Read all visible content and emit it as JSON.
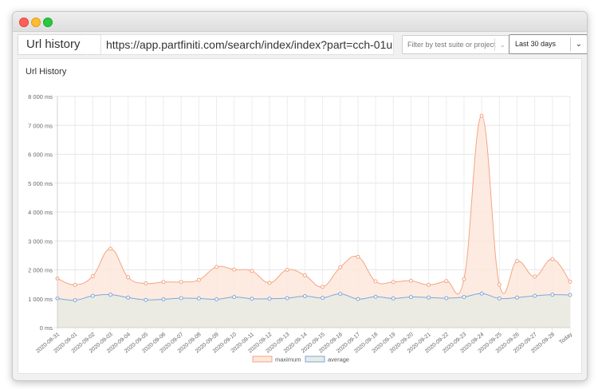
{
  "toolbar": {
    "page_title": "Url history",
    "url": "https://app.partfiniti.com/search/index/index?part=cch-01u",
    "filter_placeholder": "Filter by test suite or project",
    "range_value": "Last 30 days"
  },
  "panel": {
    "title": "Url History"
  },
  "colors": {
    "maximum_line": "#f4a582",
    "maximum_fill": "#fde8dd",
    "average_line": "#7fa7d8",
    "average_fill": "#e7ebe3"
  },
  "icons": {
    "dropdown": "chevron-down-icon"
  },
  "chart_data": {
    "type": "area",
    "title": "",
    "xlabel": "",
    "ylabel": "",
    "ylim": [
      0,
      8000
    ],
    "y_ticks": [
      0,
      1000,
      2000,
      3000,
      4000,
      5000,
      6000,
      7000,
      8000
    ],
    "y_tick_labels": [
      "0 ms",
      "1 000 ms",
      "2 000 ms",
      "3 000 ms",
      "4 000 ms",
      "5 000 ms",
      "6 000 ms",
      "7 000 ms",
      "8 000 ms"
    ],
    "grid": true,
    "legend": "bottom",
    "categories": [
      "2020-08-31",
      "2020-09-01",
      "2020-09-02",
      "2020-09-03",
      "2020-09-04",
      "2020-09-05",
      "2020-09-06",
      "2020-09-07",
      "2020-09-08",
      "2020-09-09",
      "2020-09-10",
      "2020-09-11",
      "2020-09-12",
      "2020-09-13",
      "2020-09-14",
      "2020-09-15",
      "2020-09-16",
      "2020-09-17",
      "2020-09-18",
      "2020-09-19",
      "2020-09-20",
      "2020-09-21",
      "2020-09-22",
      "2020-09-23",
      "2020-09-24",
      "2020-09-25",
      "2020-09-26",
      "2020-09-27",
      "2020-09-28",
      "Today"
    ],
    "series": [
      {
        "name": "maximum",
        "values": [
          1700,
          1480,
          1780,
          2730,
          1740,
          1530,
          1580,
          1580,
          1650,
          2100,
          2010,
          1960,
          1550,
          2000,
          1810,
          1410,
          2090,
          2450,
          1600,
          1580,
          1620,
          1480,
          1610,
          1680,
          7330,
          1490,
          2300,
          1770,
          2370,
          1590
        ]
      },
      {
        "name": "average",
        "values": [
          1010,
          950,
          1100,
          1140,
          1040,
          960,
          980,
          1020,
          1010,
          980,
          1060,
          1000,
          1000,
          1020,
          1090,
          1030,
          1170,
          990,
          1070,
          1010,
          1060,
          1040,
          1020,
          1060,
          1180,
          1010,
          1040,
          1100,
          1140,
          1130
        ]
      }
    ]
  }
}
